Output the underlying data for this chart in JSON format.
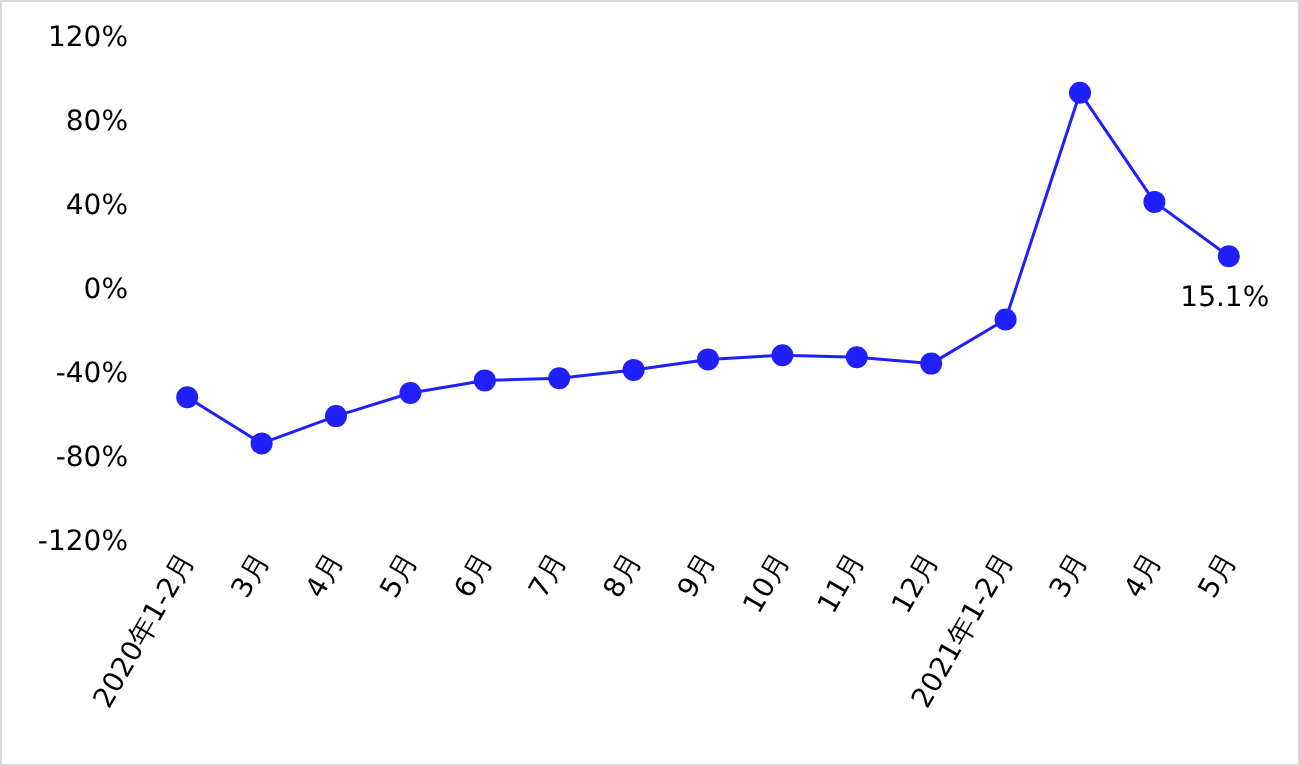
{
  "chart_data": {
    "type": "line",
    "categories": [
      "2020年1-2月",
      "3月",
      "4月",
      "5月",
      "6月",
      "7月",
      "8月",
      "9月",
      "10月",
      "11月",
      "12月",
      "2021年1-2月",
      "3月",
      "4月",
      "5月"
    ],
    "series": [
      {
        "color": "#1f1fff",
        "values": [
          -52,
          -74,
          -61,
          -50,
          -44,
          -43,
          -39,
          -34,
          -32,
          -33,
          -36,
          -15,
          93,
          41,
          15.1
        ],
        "value_labels": [
          null,
          null,
          null,
          null,
          null,
          null,
          null,
          null,
          null,
          null,
          null,
          null,
          null,
          null,
          "15.1%"
        ]
      }
    ],
    "ylim": [
      -120,
      120
    ],
    "yticks": [
      {
        "value": -120,
        "label": "-120%"
      },
      {
        "value": -80,
        "label": "-80%"
      },
      {
        "value": -40,
        "label": "-40%"
      },
      {
        "value": 0,
        "label": "0%"
      },
      {
        "value": 40,
        "label": "40%"
      },
      {
        "value": 80,
        "label": "80%"
      },
      {
        "value": 120,
        "label": "120%"
      }
    ],
    "marker": "circle",
    "line_style": "solid",
    "grid": false
  }
}
